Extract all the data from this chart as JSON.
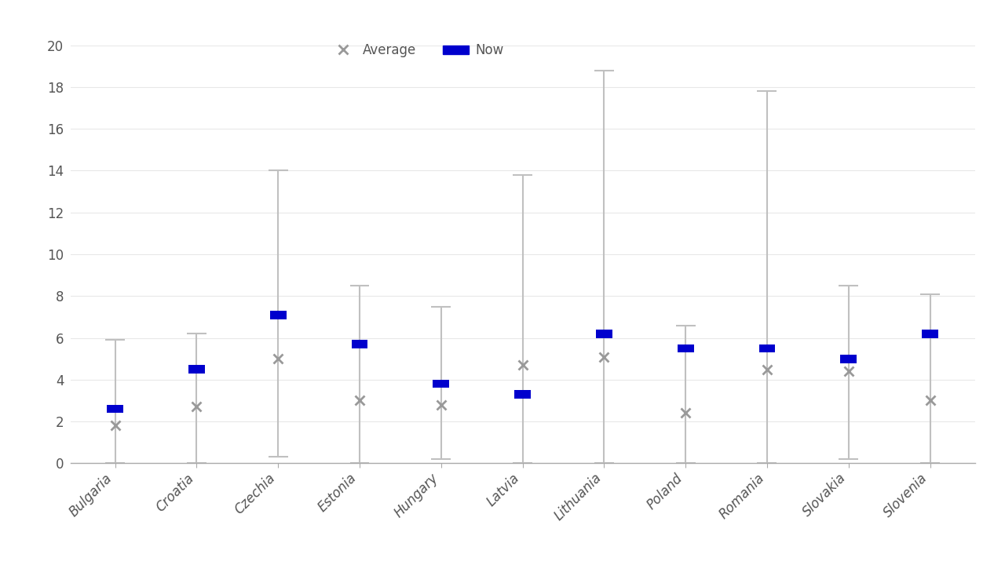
{
  "categories": [
    "Bulgaria",
    "Croatia",
    "Czechia",
    "Estonia",
    "Hungary",
    "Latvia",
    "Lithuania",
    "Poland",
    "Romania",
    "Slovakia",
    "Slovenia"
  ],
  "now_values": [
    2.6,
    4.5,
    7.1,
    5.7,
    3.8,
    3.3,
    6.2,
    5.5,
    5.5,
    5.0,
    6.2
  ],
  "avg_values": [
    1.8,
    2.7,
    5.0,
    3.0,
    2.8,
    4.7,
    5.1,
    2.4,
    4.5,
    4.4,
    3.0
  ],
  "range_min": [
    0.0,
    0.0,
    0.3,
    0.0,
    0.2,
    0.0,
    0.0,
    0.0,
    0.0,
    0.2,
    0.0
  ],
  "range_max": [
    5.9,
    6.2,
    14.0,
    8.5,
    7.5,
    13.8,
    18.8,
    6.6,
    17.8,
    8.5,
    8.1
  ],
  "now_color": "#0000CD",
  "avg_color": "#999999",
  "range_color": "#C0C0C0",
  "ylim": [
    0,
    20
  ],
  "yticks": [
    0,
    2,
    4,
    6,
    8,
    10,
    12,
    14,
    16,
    18,
    20
  ],
  "legend_avg_label": "Average",
  "legend_now_label": "Now",
  "background_color": "#FFFFFF",
  "figsize": [
    12.8,
    7.2
  ],
  "dpi": 100
}
